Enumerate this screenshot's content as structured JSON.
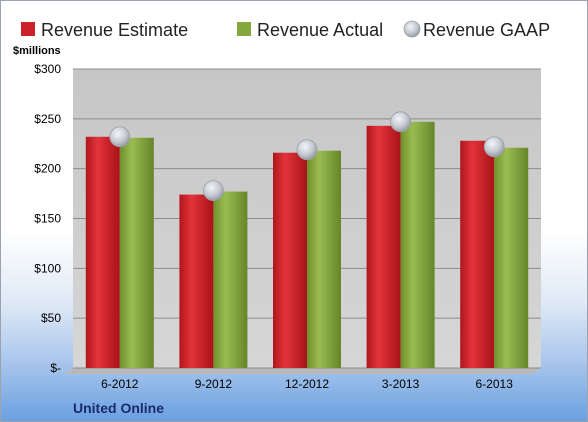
{
  "chart_data": {
    "type": "bar",
    "categories": [
      "6-2012",
      "9-2012",
      "12-2012",
      "3-2013",
      "6-2013"
    ],
    "series": [
      {
        "name": "Revenue Estimate",
        "values": [
          232,
          174,
          216,
          243,
          228
        ],
        "color": "#cc2229",
        "kind": "bar"
      },
      {
        "name": "Revenue Actual",
        "values": [
          231,
          177,
          218,
          247,
          221
        ],
        "color": "#86a63e",
        "kind": "bar"
      },
      {
        "name": "Revenue GAAP",
        "values": [
          232,
          178,
          219,
          247,
          222
        ],
        "color": "#c0c4cc",
        "kind": "marker"
      }
    ],
    "yunit": "$millions",
    "yticks": [
      0,
      50,
      100,
      150,
      200,
      250,
      300
    ],
    "ytick_labels": [
      "$-",
      "$50",
      "$100",
      "$150",
      "$200",
      "$250",
      "$300"
    ],
    "ylim": [
      0,
      300
    ],
    "grid": true,
    "legend_position": "top",
    "footer": "United Online",
    "colors": {
      "plot_background": "#c8c8c8",
      "gridline": "#8c8c8c"
    }
  }
}
